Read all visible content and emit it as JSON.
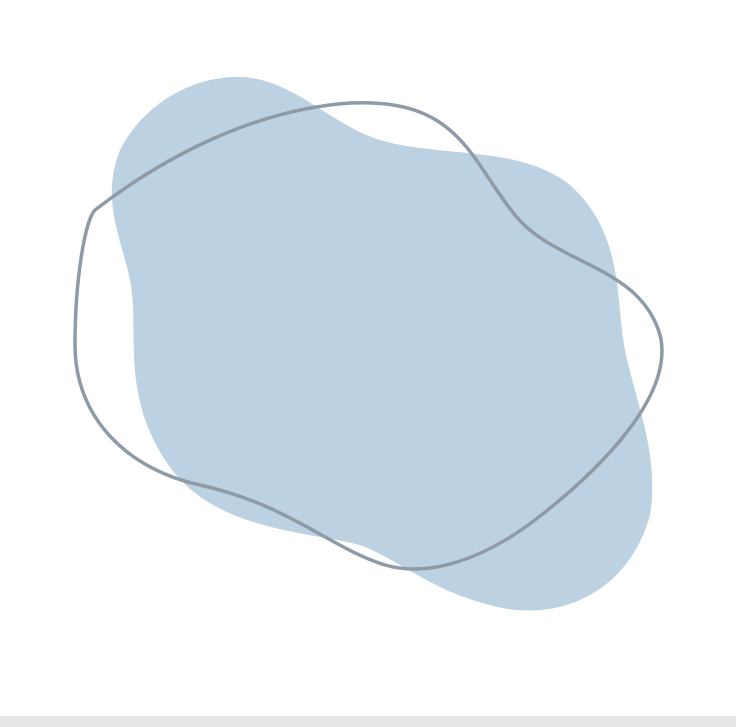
{
  "colors": {
    "background": "#ffffff",
    "blob_fill": "#bcd1e1",
    "outline_stroke": "#8e9ba7",
    "bottom_strip": "#e6e6e6"
  },
  "shapes": {
    "filled_blob": "organic-blob-shape",
    "outline_blob": "organic-blob-outline"
  }
}
